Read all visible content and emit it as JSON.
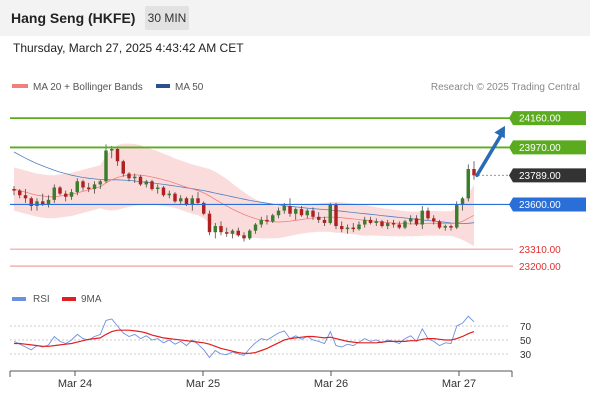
{
  "header": {
    "title": "Hang Seng (HKFE)",
    "interval": "30 MIN"
  },
  "datetime": "Thursday, March 27, 2025 4:43:42 AM CET",
  "legend": {
    "item1": "MA 20 + Bollinger Bands",
    "item2": "MA 50",
    "source": "Research © 2025 Trading Central"
  },
  "colors": {
    "up": "#3a7d2c",
    "down": "#b02020",
    "ma20": "#f08080",
    "ma50": "#5080c0",
    "band": "#fad6d6",
    "resistance": "#5aab1e",
    "support": "#2a6ed8",
    "target": "#e03030",
    "arrow": "#2a6bb8",
    "rsi": "#6c90e0",
    "rsi_ma": "#e02020"
  },
  "levels": [
    {
      "value": 24160,
      "label": "24160.00",
      "type": "resistance"
    },
    {
      "value": 23970,
      "label": "23970.00",
      "type": "resistance"
    },
    {
      "value": 23789,
      "label": "23789.00",
      "type": "current"
    },
    {
      "value": 23600,
      "label": "23600.00",
      "type": "pivot"
    },
    {
      "value": 23310,
      "label": "23310.00",
      "type": "target"
    },
    {
      "value": 23200,
      "label": "23200.00",
      "type": "target"
    }
  ],
  "chart_data": {
    "type": "candlestick",
    "instrument": "Hang Seng (HKFE)",
    "timeframe": "30 MIN",
    "x_labels": [
      "Mar 24",
      "Mar 25",
      "Mar 26",
      "Mar 27"
    ],
    "ylim": [
      23110,
      24310
    ],
    "candles": [
      [
        23700,
        23720,
        23660,
        23690
      ],
      [
        23690,
        23700,
        23640,
        23660
      ],
      [
        23660,
        23700,
        23610,
        23640
      ],
      [
        23640,
        23650,
        23560,
        23590
      ],
      [
        23590,
        23640,
        23560,
        23620
      ],
      [
        23620,
        23670,
        23590,
        23600
      ],
      [
        23600,
        23660,
        23580,
        23630
      ],
      [
        23630,
        23730,
        23610,
        23710
      ],
      [
        23710,
        23720,
        23660,
        23670
      ],
      [
        23670,
        23690,
        23620,
        23650
      ],
      [
        23650,
        23700,
        23630,
        23680
      ],
      [
        23680,
        23770,
        23660,
        23750
      ],
      [
        23750,
        23760,
        23690,
        23710
      ],
      [
        23710,
        23740,
        23680,
        23700
      ],
      [
        23700,
        23750,
        23670,
        23730
      ],
      [
        23730,
        23760,
        23700,
        23750
      ],
      [
        23750,
        23990,
        23740,
        23950
      ],
      [
        23950,
        23980,
        23900,
        23960
      ],
      [
        23960,
        23970,
        23850,
        23880
      ],
      [
        23880,
        23890,
        23780,
        23800
      ],
      [
        23800,
        23810,
        23750,
        23770
      ],
      [
        23770,
        23800,
        23740,
        23780
      ],
      [
        23780,
        23790,
        23720,
        23730
      ],
      [
        23730,
        23760,
        23710,
        23750
      ],
      [
        23750,
        23760,
        23690,
        23700
      ],
      [
        23700,
        23730,
        23670,
        23710
      ],
      [
        23710,
        23720,
        23650,
        23660
      ],
      [
        23660,
        23690,
        23640,
        23670
      ],
      [
        23670,
        23680,
        23610,
        23620
      ],
      [
        23620,
        23660,
        23600,
        23640
      ],
      [
        23640,
        23650,
        23590,
        23600
      ],
      [
        23600,
        23660,
        23560,
        23640
      ],
      [
        23640,
        23680,
        23600,
        23610
      ],
      [
        23610,
        23620,
        23530,
        23540
      ],
      [
        23540,
        23560,
        23400,
        23420
      ],
      [
        23420,
        23480,
        23380,
        23460
      ],
      [
        23460,
        23490,
        23400,
        23420
      ],
      [
        23420,
        23450,
        23390,
        23410
      ],
      [
        23410,
        23440,
        23380,
        23430
      ],
      [
        23430,
        23450,
        23390,
        23400
      ],
      [
        23400,
        23420,
        23360,
        23380
      ],
      [
        23380,
        23440,
        23370,
        23430
      ],
      [
        23430,
        23480,
        23410,
        23470
      ],
      [
        23470,
        23520,
        23450,
        23500
      ],
      [
        23500,
        23530,
        23470,
        23490
      ],
      [
        23490,
        23540,
        23480,
        23530
      ],
      [
        23530,
        23580,
        23510,
        23560
      ],
      [
        23560,
        23610,
        23540,
        23590
      ],
      [
        23590,
        23640,
        23520,
        23540
      ],
      [
        23540,
        23580,
        23500,
        23570
      ],
      [
        23570,
        23590,
        23520,
        23530
      ],
      [
        23530,
        23570,
        23510,
        23560
      ],
      [
        23560,
        23580,
        23500,
        23520
      ],
      [
        23520,
        23550,
        23480,
        23500
      ],
      [
        23500,
        23520,
        23460,
        23480
      ],
      [
        23480,
        23610,
        23470,
        23600
      ],
      [
        23600,
        23610,
        23440,
        23460
      ],
      [
        23460,
        23490,
        23420,
        23440
      ],
      [
        23440,
        23470,
        23410,
        23450
      ],
      [
        23450,
        23480,
        23420,
        23440
      ],
      [
        23440,
        23490,
        23430,
        23470
      ],
      [
        23470,
        23520,
        23450,
        23500
      ],
      [
        23500,
        23520,
        23470,
        23480
      ],
      [
        23480,
        23510,
        23460,
        23490
      ],
      [
        23490,
        23500,
        23450,
        23460
      ],
      [
        23460,
        23500,
        23440,
        23480
      ],
      [
        23480,
        23500,
        23450,
        23470
      ],
      [
        23470,
        23490,
        23440,
        23450
      ],
      [
        23450,
        23500,
        23440,
        23490
      ],
      [
        23490,
        23530,
        23470,
        23510
      ],
      [
        23510,
        23530,
        23460,
        23470
      ],
      [
        23470,
        23590,
        23440,
        23560
      ],
      [
        23560,
        23580,
        23500,
        23510
      ],
      [
        23510,
        23530,
        23470,
        23490
      ],
      [
        23490,
        23500,
        23440,
        23450
      ],
      [
        23450,
        23470,
        23430,
        23460
      ],
      [
        23460,
        23470,
        23430,
        23450
      ],
      [
        23450,
        23620,
        23440,
        23600
      ],
      [
        23600,
        23650,
        23560,
        23640
      ],
      [
        23640,
        23860,
        23620,
        23830
      ],
      [
        23830,
        23880,
        23760,
        23789
      ]
    ],
    "ma20": [
      23700,
      23690,
      23680,
      23670,
      23660,
      23655,
      23650,
      23650,
      23655,
      23660,
      23665,
      23675,
      23685,
      23695,
      23705,
      23715,
      23740,
      23760,
      23775,
      23785,
      23790,
      23792,
      23790,
      23785,
      23778,
      23770,
      23760,
      23750,
      23738,
      23725,
      23712,
      23700,
      23690,
      23675,
      23655,
      23632,
      23610,
      23590,
      23570,
      23552,
      23535,
      23520,
      23508,
      23498,
      23492,
      23488,
      23486,
      23488,
      23492,
      23497,
      23502,
      23508,
      23512,
      23515,
      23517,
      23518,
      23517,
      23514,
      23510,
      23506,
      23502,
      23498,
      23494,
      23490,
      23486,
      23483,
      23480,
      23477,
      23475,
      23474,
      23474,
      23476,
      23478,
      23478,
      23477,
      23476,
      23476,
      23480,
      23490,
      23510,
      23530
    ],
    "ma50": [
      23940,
      23920,
      23900,
      23882,
      23865,
      23850,
      23836,
      23822,
      23810,
      23800,
      23790,
      23782,
      23775,
      23770,
      23766,
      23762,
      23760,
      23760,
      23760,
      23758,
      23756,
      23752,
      23748,
      23744,
      23740,
      23735,
      23730,
      23725,
      23720,
      23714,
      23708,
      23702,
      23696,
      23690,
      23682,
      23674,
      23666,
      23658,
      23650,
      23642,
      23634,
      23626,
      23620,
      23614,
      23608,
      23602,
      23597,
      23592,
      23588,
      23584,
      23580,
      23576,
      23573,
      23570,
      23567,
      23564,
      23560,
      23556,
      23552,
      23548,
      23544,
      23540,
      23536,
      23532,
      23528,
      23524,
      23520,
      23516,
      23512,
      23508,
      23504,
      23500,
      23496,
      23492,
      23488,
      23484,
      23480,
      23477,
      23476,
      23478,
      23482
    ],
    "bollinger_width": [
      140,
      140,
      140,
      140,
      140,
      140,
      140,
      140,
      140,
      140,
      140,
      140,
      140,
      140,
      140,
      140,
      175,
      200,
      210,
      210,
      205,
      200,
      195,
      185,
      180,
      175,
      170,
      165,
      160,
      160,
      160,
      160,
      160,
      165,
      175,
      180,
      180,
      175,
      165,
      155,
      145,
      135,
      125,
      118,
      112,
      108,
      104,
      100,
      96,
      94,
      92,
      92,
      92,
      92,
      94,
      96,
      100,
      100,
      100,
      100,
      100,
      100,
      96,
      92,
      90,
      88,
      86,
      84,
      82,
      80,
      80,
      80,
      80,
      80,
      80,
      80,
      80,
      95,
      120,
      160,
      200
    ],
    "rsi": {
      "ylim": [
        10,
        90
      ],
      "levels": [
        70,
        50,
        30
      ],
      "values": [
        48,
        44,
        40,
        36,
        42,
        40,
        43,
        55,
        48,
        45,
        50,
        58,
        52,
        50,
        55,
        58,
        78,
        80,
        70,
        60,
        55,
        58,
        52,
        56,
        50,
        52,
        46,
        50,
        44,
        48,
        42,
        50,
        44,
        36,
        25,
        35,
        30,
        29,
        33,
        30,
        28,
        38,
        46,
        52,
        50,
        55,
        60,
        63,
        52,
        56,
        51,
        55,
        50,
        48,
        45,
        62,
        42,
        40,
        44,
        42,
        47,
        52,
        48,
        50,
        46,
        50,
        48,
        45,
        52,
        56,
        48,
        66,
        52,
        48,
        42,
        46,
        45,
        70,
        74,
        84,
        76
      ],
      "ma9": [
        45,
        45,
        44,
        43,
        42,
        41,
        41,
        42,
        43,
        44,
        45,
        47,
        49,
        51,
        52,
        53,
        58,
        62,
        64,
        64,
        64,
        63,
        62,
        60,
        57,
        55,
        53,
        52,
        51,
        50,
        49,
        48,
        47,
        46,
        44,
        41,
        38,
        36,
        34,
        32,
        31,
        31,
        32,
        35,
        38,
        42,
        46,
        50,
        52,
        53,
        54,
        55,
        55,
        54,
        53,
        54,
        52,
        50,
        48,
        47,
        46,
        46,
        46,
        46,
        47,
        48,
        48,
        48,
        48,
        49,
        49,
        51,
        52,
        52,
        51,
        50,
        50,
        52,
        55,
        59,
        62
      ]
    }
  }
}
